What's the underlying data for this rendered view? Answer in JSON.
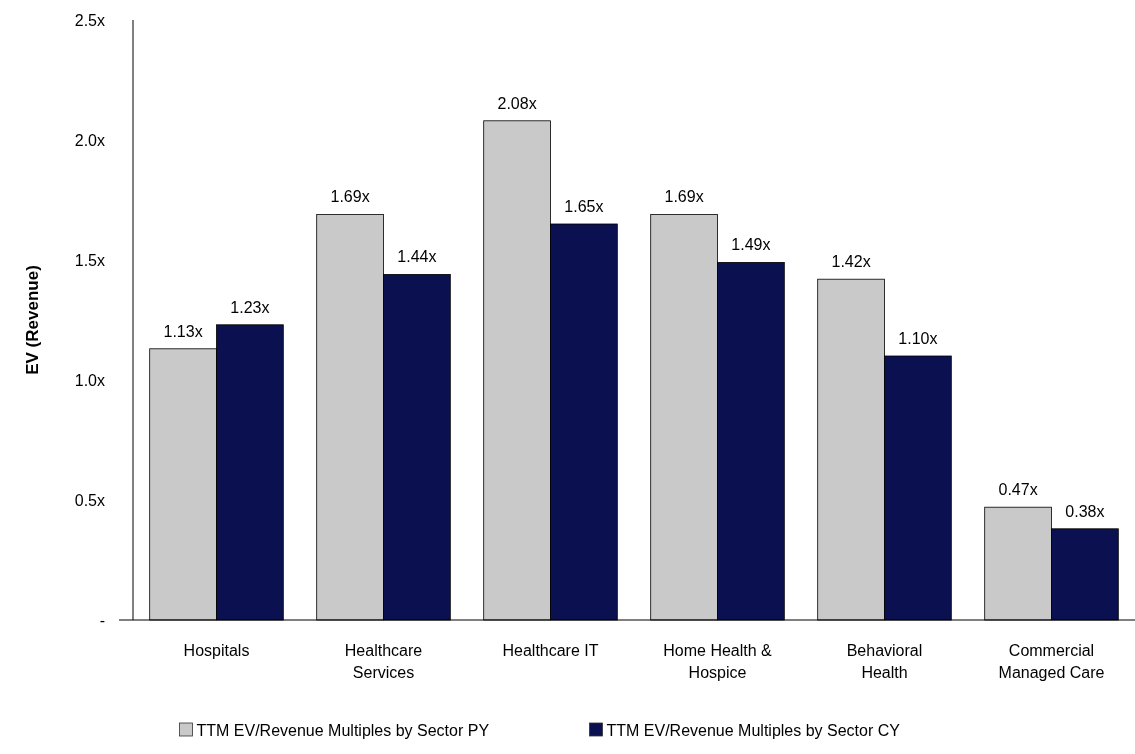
{
  "chart_data": {
    "type": "bar",
    "ylabel": "EV (Revenue)",
    "categories": [
      "Hospitals",
      "Healthcare Services",
      "Healthcare IT",
      "Home Health & Hospice",
      "Behavioral Health",
      "Commercial Managed Care"
    ],
    "series": [
      {
        "name": "TTM EV/Revenue Multiples by Sector PY",
        "color": "#c9c9c9",
        "values": [
          1.13,
          1.69,
          2.08,
          1.69,
          1.42,
          0.47
        ],
        "value_labels": [
          "1.13x",
          "1.69x",
          "2.08x",
          "1.69x",
          "1.42x",
          "0.47x"
        ]
      },
      {
        "name": "TTM EV/Revenue Multiples by Sector CY",
        "color": "#0b1150",
        "values": [
          1.23,
          1.44,
          1.65,
          1.49,
          1.1,
          0.38
        ],
        "value_labels": [
          "1.23x",
          "1.44x",
          "1.65x",
          "1.49x",
          "1.10x",
          "0.38x"
        ]
      }
    ],
    "ylim": [
      0,
      2.5
    ],
    "yticks": [
      {
        "value": 0,
        "label": "-"
      },
      {
        "value": 0.5,
        "label": "0.5x"
      },
      {
        "value": 1,
        "label": "1.0x"
      },
      {
        "value": 1.5,
        "label": "1.5x"
      },
      {
        "value": 2,
        "label": "2.0x"
      },
      {
        "value": 2.5,
        "label": "2.5x"
      }
    ],
    "legend": "bottom"
  }
}
